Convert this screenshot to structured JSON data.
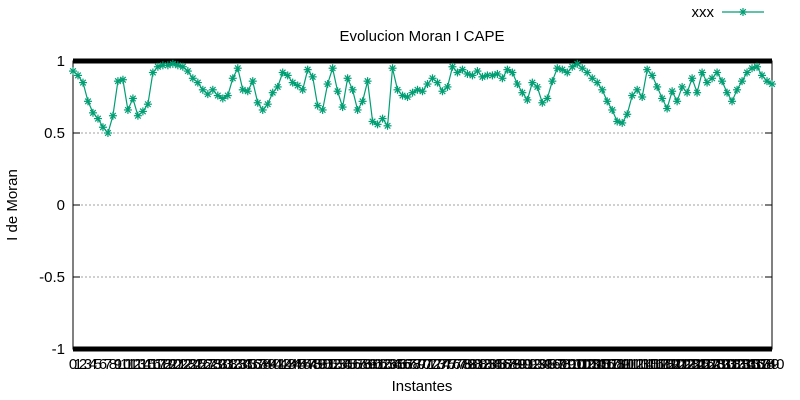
{
  "chart_data": {
    "type": "line",
    "title": "Evolucion Moran I CAPE",
    "xlabel": "Instantes",
    "ylabel": "I de Moran",
    "ylim": [
      -1,
      1
    ],
    "yticks": [
      "1",
      "0.5",
      "0",
      "-0.5",
      "-1"
    ],
    "grid": true,
    "legend_position": "top-right",
    "series": [
      {
        "name": "xxx",
        "color": "#009e73",
        "marker": "asterisk",
        "x": [
          0,
          1,
          2,
          3,
          4,
          5,
          6,
          7,
          8,
          9,
          10,
          11,
          12,
          13,
          14,
          15,
          16,
          17,
          18,
          19,
          20,
          21,
          22,
          23,
          24,
          25,
          26,
          27,
          28,
          29,
          30,
          31,
          32,
          33,
          34,
          35,
          36,
          37,
          38,
          39,
          40,
          41,
          42,
          43,
          44,
          45,
          46,
          47,
          48,
          49,
          50,
          51,
          52,
          53,
          54,
          55,
          56,
          57,
          58,
          59,
          60,
          61,
          62,
          63,
          64,
          65,
          66,
          67,
          68,
          69,
          70,
          71,
          72,
          73,
          74,
          75,
          76,
          77,
          78,
          79,
          80,
          81,
          82,
          83,
          84,
          85,
          86,
          87,
          88,
          89,
          90,
          91,
          92,
          93,
          94,
          95,
          96,
          97,
          98,
          99,
          100,
          101,
          102,
          103,
          104,
          105,
          106,
          107,
          108,
          109,
          110,
          111,
          112,
          113,
          114,
          115,
          116,
          117,
          118,
          119,
          120,
          121,
          122,
          123,
          124,
          125,
          126,
          127,
          128,
          129,
          130,
          131,
          132,
          133,
          134,
          135,
          136,
          137,
          138,
          139,
          140
        ],
        "y": [
          0.93,
          0.9,
          0.85,
          0.72,
          0.64,
          0.6,
          0.54,
          0.5,
          0.62,
          0.86,
          0.87,
          0.66,
          0.74,
          0.62,
          0.65,
          0.7,
          0.92,
          0.96,
          0.97,
          0.97,
          0.98,
          0.97,
          0.96,
          0.93,
          0.88,
          0.85,
          0.8,
          0.77,
          0.8,
          0.76,
          0.74,
          0.76,
          0.88,
          0.95,
          0.8,
          0.79,
          0.86,
          0.71,
          0.66,
          0.7,
          0.78,
          0.82,
          0.92,
          0.9,
          0.85,
          0.83,
          0.8,
          0.94,
          0.89,
          0.69,
          0.66,
          0.84,
          0.95,
          0.79,
          0.68,
          0.88,
          0.8,
          0.66,
          0.72,
          0.86,
          0.58,
          0.56,
          0.6,
          0.55,
          0.95,
          0.8,
          0.76,
          0.75,
          0.78,
          0.8,
          0.79,
          0.84,
          0.88,
          0.85,
          0.79,
          0.82,
          0.96,
          0.92,
          0.94,
          0.91,
          0.9,
          0.93,
          0.89,
          0.9,
          0.9,
          0.91,
          0.88,
          0.94,
          0.92,
          0.84,
          0.78,
          0.73,
          0.85,
          0.82,
          0.71,
          0.74,
          0.86,
          0.95,
          0.94,
          0.92,
          0.96,
          0.98,
          0.95,
          0.92,
          0.88,
          0.85,
          0.8,
          0.72,
          0.66,
          0.58,
          0.57,
          0.63,
          0.76,
          0.8,
          0.75,
          0.94,
          0.9,
          0.82,
          0.74,
          0.67,
          0.79,
          0.72,
          0.82,
          0.78,
          0.88,
          0.78,
          0.92,
          0.85,
          0.88,
          0.92,
          0.86,
          0.78,
          0.72,
          0.8,
          0.86,
          0.92,
          0.95,
          0.96,
          0.9,
          0.86,
          0.84
        ]
      }
    ]
  }
}
